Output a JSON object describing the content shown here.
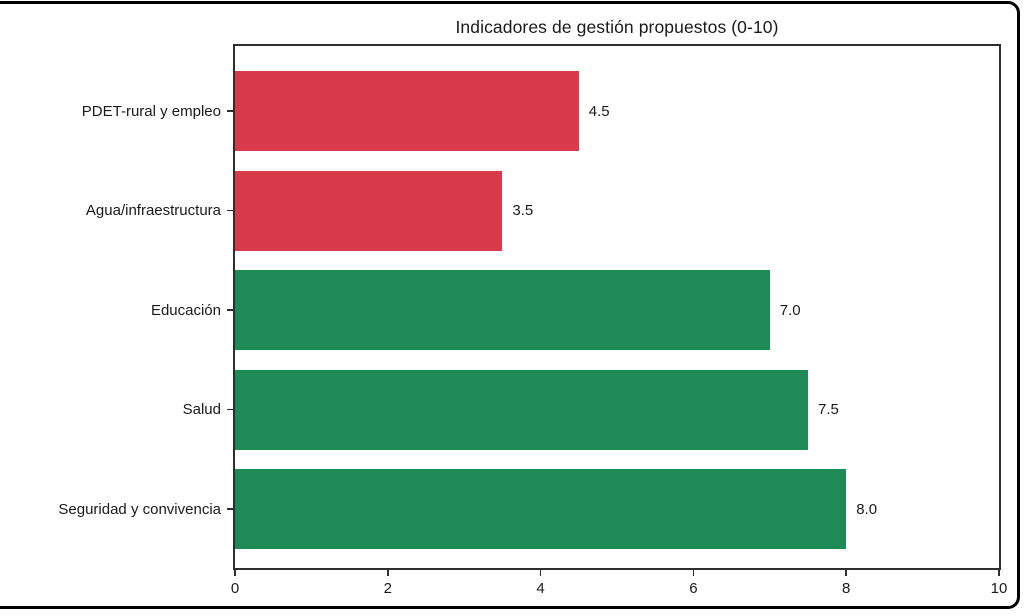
{
  "chart_data": {
    "type": "bar",
    "orientation": "horizontal",
    "title": "Indicadores de gestión propuestos (0-10)",
    "categories": [
      "PDET-rural y empleo",
      "Agua/infraestructura",
      "Educación",
      "Salud",
      "Seguridad y convivencia"
    ],
    "values": [
      4.5,
      3.5,
      7.0,
      7.5,
      8.0
    ],
    "value_labels": [
      "4.5",
      "3.5",
      "7.0",
      "7.5",
      "8.0"
    ],
    "bar_colors": [
      "#d93a4c",
      "#d93a4c",
      "#1e8a55",
      "#1e8a55",
      "#1e8a55"
    ],
    "xlabel": "",
    "ylabel": "",
    "xlim": [
      0,
      10
    ],
    "x_ticks": [
      "0",
      "2",
      "4",
      "6",
      "8",
      "10"
    ],
    "x_tick_values": [
      0,
      2,
      4,
      6,
      8,
      10
    ],
    "grid": false,
    "legend": "none",
    "colors": {
      "negative_bar": "#d93a4c",
      "positive_bar": "#1e8a55",
      "spine": "#2e2e2e",
      "text": "#1a1a1a",
      "frame": "#000000",
      "background": "#ffffff"
    }
  }
}
